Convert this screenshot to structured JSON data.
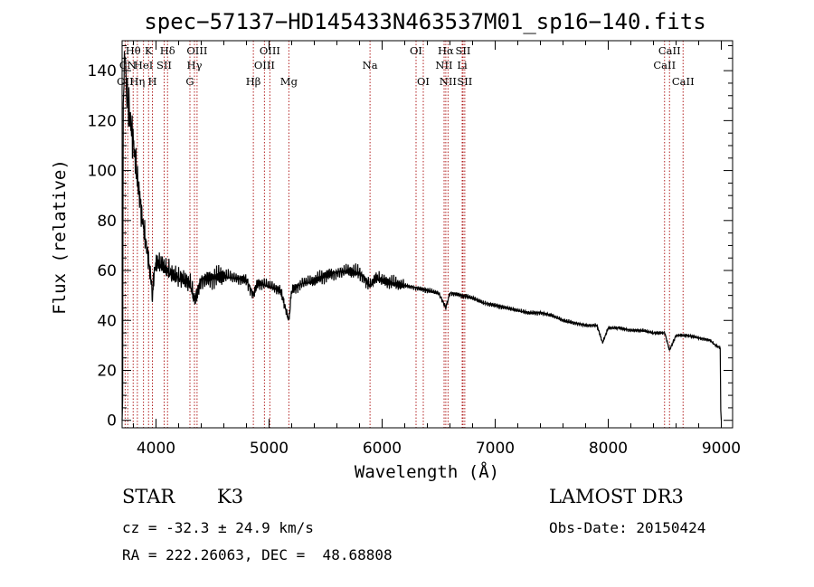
{
  "chart_data": {
    "type": "line",
    "title": "spec−57137−HD145433N463537M01_sp16−140.fits",
    "xlabel": "Wavelength (Å)",
    "ylabel": "Flux (relative)",
    "xlim": [
      3700,
      9100
    ],
    "ylim": [
      -3,
      152
    ],
    "x_ticks": [
      4000,
      5000,
      6000,
      7000,
      8000,
      9000
    ],
    "y_ticks": [
      0,
      20,
      40,
      60,
      80,
      100,
      120,
      140
    ],
    "x_tick_labels": [
      "4000",
      "5000",
      "6000",
      "7000",
      "8000",
      "9000"
    ],
    "y_tick_labels": [
      "0",
      "20",
      "40",
      "60",
      "80",
      "100",
      "120",
      "140"
    ],
    "series": [
      {
        "name": "flux",
        "x": [
          3700,
          3705,
          3710,
          3720,
          3730,
          3740,
          3760,
          3780,
          3800,
          3820,
          3840,
          3860,
          3880,
          3900,
          3920,
          3940,
          3960,
          3968,
          3980,
          4000,
          4050,
          4100,
          4150,
          4200,
          4250,
          4300,
          4340,
          4400,
          4500,
          4600,
          4700,
          4800,
          4861,
          4900,
          5000,
          5100,
          5175,
          5200,
          5300,
          5400,
          5500,
          5600,
          5700,
          5800,
          5893,
          5950,
          6000,
          6100,
          6200,
          6300,
          6400,
          6500,
          6563,
          6600,
          6700,
          6800,
          6900,
          7000,
          7100,
          7200,
          7300,
          7400,
          7500,
          7600,
          7700,
          7800,
          7900,
          7950,
          8000,
          8100,
          8200,
          8300,
          8400,
          8500,
          8542,
          8600,
          8700,
          8800,
          8900,
          8950,
          8990,
          8995,
          9000
        ],
        "y": [
          0,
          8,
          128,
          145,
          140,
          132,
          125,
          118,
          112,
          102,
          95,
          88,
          80,
          74,
          68,
          62,
          55,
          48,
          58,
          63,
          62,
          60,
          58,
          57,
          56,
          55,
          48,
          56,
          57,
          58,
          57,
          56,
          50,
          55,
          54,
          52,
          40,
          52,
          55,
          56,
          58,
          59,
          60,
          59,
          54,
          57,
          56,
          55,
          54,
          53,
          52,
          51,
          45,
          51,
          50,
          49,
          47,
          46,
          45,
          44,
          43,
          43,
          42,
          40,
          39,
          38,
          38,
          31,
          37,
          37,
          36,
          36,
          35,
          35,
          28,
          34,
          34,
          33,
          32,
          30,
          29,
          4,
          0
        ]
      }
    ],
    "line_marks": [
      {
        "x": 3727,
        "label": "OII",
        "row": 2
      },
      {
        "x": 3750,
        "label": "CN",
        "row": 1
      },
      {
        "x": 3798,
        "label": "Hθ",
        "row": 0
      },
      {
        "x": 3835,
        "label": "Hη",
        "row": 2
      },
      {
        "x": 3889,
        "label": "HeI",
        "row": 1
      },
      {
        "x": 3934,
        "label": "K",
        "row": 0
      },
      {
        "x": 3968,
        "label": "H",
        "row": 2
      },
      {
        "x": 4072,
        "label": "SII",
        "row": 1
      },
      {
        "x": 4102,
        "label": "Hδ",
        "row": 0
      },
      {
        "x": 4300,
        "label": "G",
        "row": 2
      },
      {
        "x": 4340,
        "label": "Hγ",
        "row": 1
      },
      {
        "x": 4363,
        "label": "OIII",
        "row": 0
      },
      {
        "x": 4861,
        "label": "Hβ",
        "row": 2
      },
      {
        "x": 4959,
        "label": "OIII",
        "row": 1
      },
      {
        "x": 5007,
        "label": "OIII",
        "row": 0
      },
      {
        "x": 5175,
        "label": "Mg",
        "row": 2
      },
      {
        "x": 5893,
        "label": "Na",
        "row": 1
      },
      {
        "x": 6300,
        "label": "OI",
        "row": 0
      },
      {
        "x": 6364,
        "label": "OI",
        "row": 2
      },
      {
        "x": 6548,
        "label": "NII",
        "row": 1
      },
      {
        "x": 6563,
        "label": "Hα",
        "row": 0
      },
      {
        "x": 6583,
        "label": "NII",
        "row": 2
      },
      {
        "x": 6708,
        "label": "Li",
        "row": 1
      },
      {
        "x": 6716,
        "label": "SII",
        "row": 0
      },
      {
        "x": 6731,
        "label": "SII",
        "row": 2
      },
      {
        "x": 8498,
        "label": "CaII",
        "row": 1
      },
      {
        "x": 8542,
        "label": "CaII",
        "row": 0
      },
      {
        "x": 8662,
        "label": "CaII",
        "row": 2
      }
    ],
    "line_mark_color": "#b22222"
  },
  "info": {
    "star_label": "STAR",
    "spectral_class": "K3",
    "survey": "LAMOST DR3",
    "cz": "cz = -32.3 ± 24.9 km/s",
    "obs_date": "Obs-Date: 20150424",
    "coords": "RA = 222.26063, DEC =  48.68808"
  }
}
